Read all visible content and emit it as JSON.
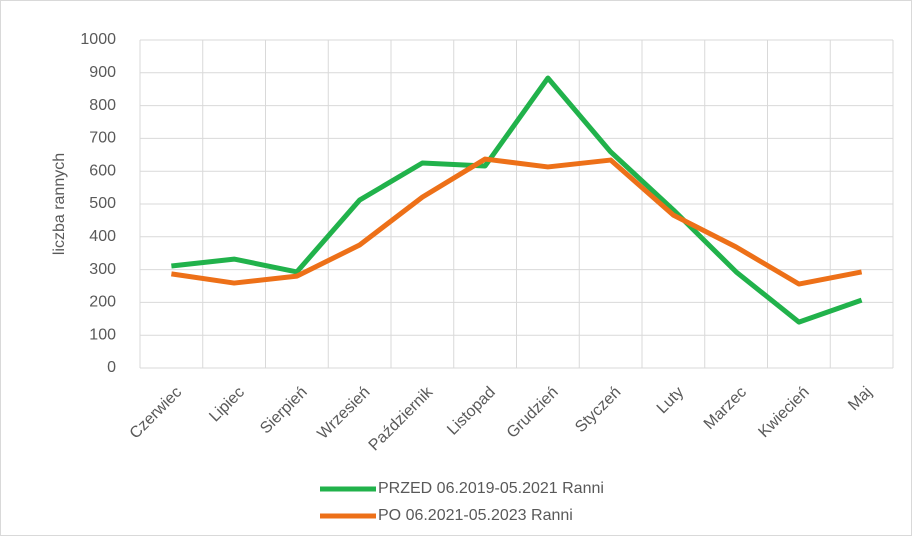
{
  "chart_data": {
    "type": "line",
    "ylabel": "liczba rannych",
    "categories": [
      "Czerwiec",
      "Lipiec",
      "Sierpień",
      "Wrzesień",
      "Październik",
      "Listopad",
      "Grudzień",
      "Styczeń",
      "Luty",
      "Marzec",
      "Kwiecień",
      "Maj"
    ],
    "series": [
      {
        "name": "PRZED 06.2019-05.2021 Ranni",
        "color": "#21b24b",
        "values": [
          311,
          332,
          293,
          512,
          625,
          616,
          884,
          659,
          482,
          293,
          140,
          207
        ]
      },
      {
        "name": "PO 06.2021-05.2023 Ranni",
        "color": "#ed7018",
        "values": [
          287,
          259,
          280,
          375,
          521,
          637,
          613,
          634,
          466,
          369,
          256,
          293
        ]
      }
    ],
    "ylim": [
      0,
      1000
    ],
    "yticks": [
      0,
      100,
      200,
      300,
      400,
      500,
      600,
      700,
      800,
      900,
      1000
    ],
    "grid": true,
    "legend": "bottom"
  }
}
